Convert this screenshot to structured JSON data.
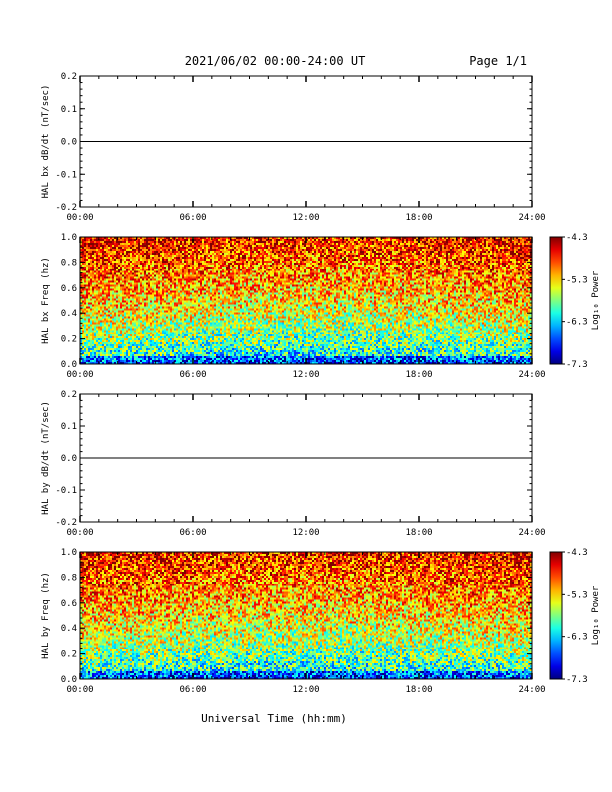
{
  "header": {
    "title": "2021/06/02  00:00-24:00 UT",
    "page": "Page 1/1"
  },
  "chart_data": [
    {
      "type": "line",
      "ylabel": "HAL bx dB/dt (nT/sec)",
      "ylim": [
        -0.2,
        0.2
      ],
      "yticks": [
        "0.2",
        "0.1",
        "0.0",
        "-0.1",
        "-0.2"
      ],
      "xlim": [
        "00:00",
        "24:00"
      ],
      "xticks": [
        "00:00",
        "06:00",
        "12:00",
        "18:00",
        "24:00"
      ],
      "series": [
        {
          "x": [
            "00:00",
            "24:00"
          ],
          "values": [
            0.0,
            0.0
          ]
        }
      ]
    },
    {
      "type": "heatmap",
      "ylabel": "HAL bx Freq (hz)",
      "ylim": [
        0.0,
        1.0
      ],
      "yticks": [
        "1.0",
        "0.8",
        "0.6",
        "0.4",
        "0.2",
        "0.0"
      ],
      "xlim": [
        "00:00",
        "24:00"
      ],
      "xticks": [
        "00:00",
        "06:00",
        "12:00",
        "18:00",
        "24:00"
      ],
      "colorbar": {
        "label": "Log₁₀ Power",
        "ticks": [
          "-4.3",
          "-5.3",
          "-6.3",
          "-7.3"
        ],
        "range": [
          -7.3,
          -4.3
        ]
      }
    },
    {
      "type": "line",
      "ylabel": "HAL by dB/dt (nT/sec)",
      "ylim": [
        -0.2,
        0.2
      ],
      "yticks": [
        "0.2",
        "0.1",
        "0.0",
        "-0.1",
        "-0.2"
      ],
      "xlim": [
        "00:00",
        "24:00"
      ],
      "xticks": [
        "00:00",
        "06:00",
        "12:00",
        "18:00",
        "24:00"
      ],
      "series": [
        {
          "x": [
            "00:00",
            "24:00"
          ],
          "values": [
            0.0,
            0.0
          ]
        }
      ]
    },
    {
      "type": "heatmap",
      "ylabel": "HAL by Freq (hz)",
      "ylim": [
        0.0,
        1.0
      ],
      "yticks": [
        "1.0",
        "0.8",
        "0.6",
        "0.4",
        "0.2",
        "0.0"
      ],
      "xlim": [
        "00:00",
        "24:00"
      ],
      "xticks": [
        "00:00",
        "06:00",
        "12:00",
        "18:00",
        "24:00"
      ],
      "xlabel": "Universal Time (hh:mm)",
      "colorbar": {
        "label": "Log₁₀ Power",
        "ticks": [
          "-4.3",
          "-5.3",
          "-6.3",
          "-7.3"
        ],
        "range": [
          -7.3,
          -4.3
        ]
      }
    }
  ]
}
